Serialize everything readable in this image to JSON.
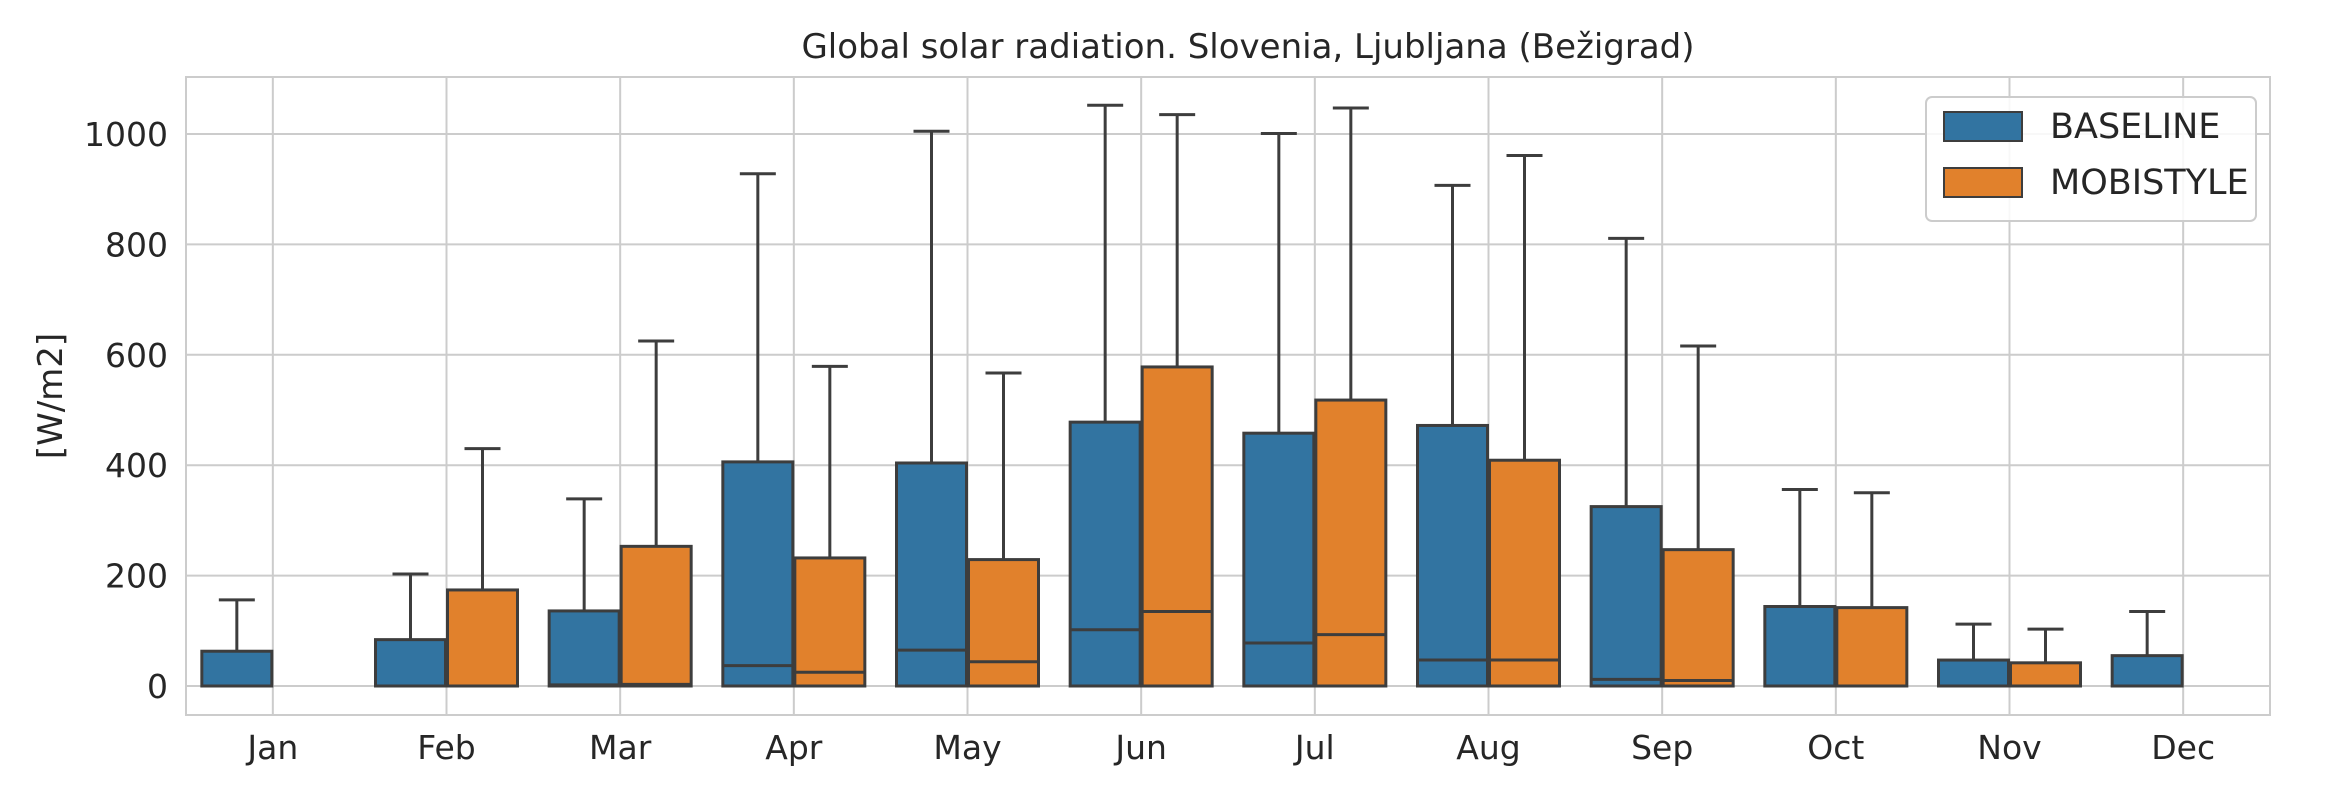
{
  "chart_data": {
    "type": "boxplot",
    "title": "Global solar radiation. Slovenia, Ljubljana (Bežigrad)",
    "xlabel": "",
    "ylabel": "[W/m2]",
    "ylim": [
      -50,
      1110
    ],
    "yticks": [
      0,
      200,
      400,
      600,
      800,
      1000
    ],
    "grid": true,
    "legend_position": "top-right",
    "categories": [
      "Jan",
      "Feb",
      "Mar",
      "Apr",
      "May",
      "Jun",
      "Jul",
      "Aug",
      "Sep",
      "Oct",
      "Nov",
      "Dec"
    ],
    "series": [
      {
        "name": "BASELINE",
        "color": "#3274a1",
        "boxes": [
          {
            "q1": 0,
            "median": 0,
            "q3": 63,
            "whisker_high": 156
          },
          {
            "q1": 0,
            "median": 0,
            "q3": 84,
            "whisker_high": 203
          },
          {
            "q1": 0,
            "median": 2,
            "q3": 136,
            "whisker_high": 339
          },
          {
            "q1": 0,
            "median": 37,
            "q3": 406,
            "whisker_high": 928
          },
          {
            "q1": 0,
            "median": 65,
            "q3": 404,
            "whisker_high": 1005
          },
          {
            "q1": 0,
            "median": 102,
            "q3": 478,
            "whisker_high": 1052
          },
          {
            "q1": 0,
            "median": 78,
            "q3": 458,
            "whisker_high": 1001
          },
          {
            "q1": 0,
            "median": 47,
            "q3": 472,
            "whisker_high": 907
          },
          {
            "q1": 0,
            "median": 12,
            "q3": 325,
            "whisker_high": 811
          },
          {
            "q1": 0,
            "median": 0,
            "q3": 144,
            "whisker_high": 356
          },
          {
            "q1": 0,
            "median": 0,
            "q3": 47,
            "whisker_high": 112
          },
          {
            "q1": 0,
            "median": 0,
            "q3": 55,
            "whisker_high": 135
          }
        ]
      },
      {
        "name": "MOBISTYLE",
        "color": "#e1812c",
        "boxes": [
          null,
          {
            "q1": 0,
            "median": 0,
            "q3": 174,
            "whisker_high": 430
          },
          {
            "q1": 0,
            "median": 3,
            "q3": 253,
            "whisker_high": 625
          },
          {
            "q1": 0,
            "median": 25,
            "q3": 232,
            "whisker_high": 579
          },
          {
            "q1": 0,
            "median": 44,
            "q3": 229,
            "whisker_high": 567
          },
          {
            "q1": 0,
            "median": 135,
            "q3": 578,
            "whisker_high": 1035
          },
          {
            "q1": 0,
            "median": 93,
            "q3": 518,
            "whisker_high": 1047
          },
          {
            "q1": 0,
            "median": 47,
            "q3": 409,
            "whisker_high": 961
          },
          {
            "q1": 0,
            "median": 10,
            "q3": 247,
            "whisker_high": 616
          },
          {
            "q1": 0,
            "median": 0,
            "q3": 142,
            "whisker_high": 350
          },
          {
            "q1": 0,
            "median": 0,
            "q3": 42,
            "whisker_high": 103
          },
          null
        ]
      }
    ]
  }
}
